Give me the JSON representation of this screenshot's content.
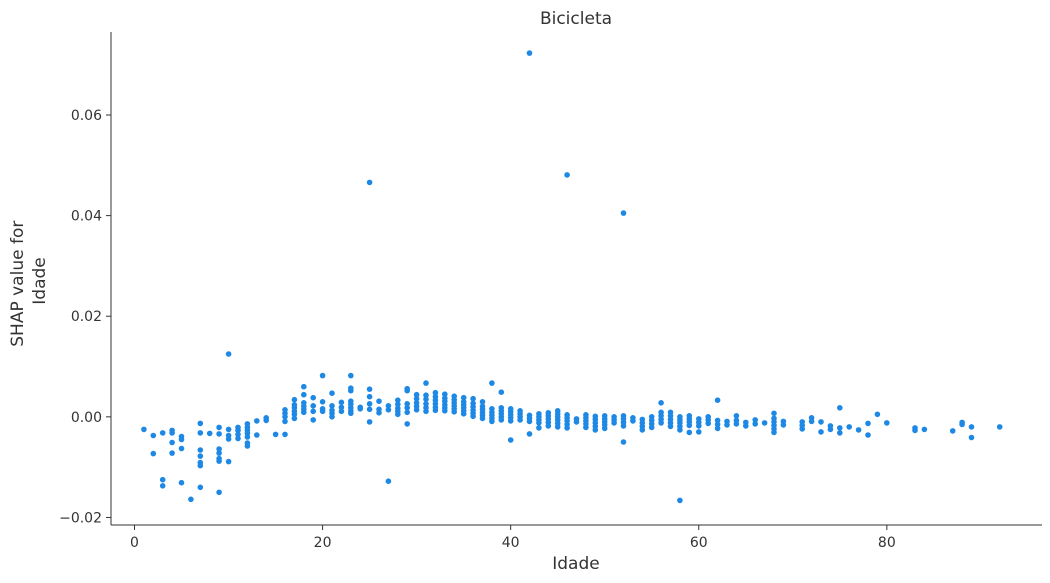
{
  "chart_data": {
    "type": "scatter",
    "title": "Bicicleta",
    "xlabel": "Idade",
    "ylabel_lines": [
      "SHAP value for",
      "Idade"
    ],
    "xlim": [
      -2.5,
      96.5
    ],
    "ylim": [
      -0.0215,
      0.0765
    ],
    "xticks": [
      0,
      20,
      40,
      60,
      80
    ],
    "yticks": [
      -0.02,
      0.0,
      0.02,
      0.04,
      0.06
    ],
    "ytick_labels": [
      "−0.02",
      "0.00",
      "0.02",
      "0.04",
      "0.06"
    ],
    "grid": false,
    "point_color": "#1e88e5",
    "points": [
      [
        1,
        -0.0025
      ],
      [
        2,
        -0.0037
      ],
      [
        2,
        -0.0073
      ],
      [
        3,
        -0.0032
      ],
      [
        3,
        -0.0125
      ],
      [
        3,
        -0.0137
      ],
      [
        4,
        -0.0027
      ],
      [
        4,
        -0.0032
      ],
      [
        4,
        -0.0051
      ],
      [
        4,
        -0.0072
      ],
      [
        5,
        -0.0039
      ],
      [
        5,
        -0.0045
      ],
      [
        5,
        -0.0063
      ],
      [
        5,
        -0.0131
      ],
      [
        6,
        -0.0164
      ],
      [
        7,
        -0.0013
      ],
      [
        7,
        -0.0032
      ],
      [
        7,
        -0.0066
      ],
      [
        7,
        -0.0078
      ],
      [
        7,
        -0.0091
      ],
      [
        7,
        -0.0097
      ],
      [
        7,
        -0.014
      ],
      [
        8,
        -0.0033
      ],
      [
        9,
        -0.0021
      ],
      [
        9,
        -0.0034
      ],
      [
        9,
        -0.0064
      ],
      [
        9,
        -0.0072
      ],
      [
        9,
        -0.0083
      ],
      [
        9,
        -0.0088
      ],
      [
        9,
        -0.015
      ],
      [
        10,
        -0.0025
      ],
      [
        10,
        -0.0037
      ],
      [
        10,
        -0.0044
      ],
      [
        10,
        -0.0089
      ],
      [
        10,
        0.0125
      ],
      [
        11,
        -0.0021
      ],
      [
        11,
        -0.0027
      ],
      [
        11,
        -0.0035
      ],
      [
        11,
        -0.0043
      ],
      [
        12,
        -0.0014
      ],
      [
        12,
        -0.0021
      ],
      [
        12,
        -0.0027
      ],
      [
        12,
        -0.0033
      ],
      [
        12,
        -0.004
      ],
      [
        12,
        -0.0052
      ],
      [
        12,
        -0.0058
      ],
      [
        13,
        -0.0008
      ],
      [
        13,
        -0.0036
      ],
      [
        14,
        -0.0002
      ],
      [
        14,
        -0.0007
      ],
      [
        15,
        -0.0035
      ],
      [
        16,
        -0.0035
      ],
      [
        16,
        -0.0009
      ],
      [
        16,
        0.0
      ],
      [
        16,
        0.0007
      ],
      [
        16,
        0.0014
      ],
      [
        17,
        -0.0003
      ],
      [
        17,
        0.0005
      ],
      [
        17,
        0.0011
      ],
      [
        17,
        0.0018
      ],
      [
        17,
        0.0024
      ],
      [
        17,
        0.0034
      ],
      [
        18,
        0.0009
      ],
      [
        18,
        0.0015
      ],
      [
        18,
        0.0021
      ],
      [
        18,
        0.0028
      ],
      [
        18,
        0.0044
      ],
      [
        18,
        0.006
      ],
      [
        19,
        -0.0006
      ],
      [
        19,
        0.0011
      ],
      [
        19,
        0.0022
      ],
      [
        19,
        0.0038
      ],
      [
        20,
        0.0011
      ],
      [
        20,
        0.0016
      ],
      [
        20,
        0.003
      ],
      [
        20,
        0.0082
      ],
      [
        21,
        0.0
      ],
      [
        21,
        0.0007
      ],
      [
        21,
        0.0013
      ],
      [
        21,
        0.0022
      ],
      [
        21,
        0.0047
      ],
      [
        22,
        0.0011
      ],
      [
        22,
        0.0019
      ],
      [
        22,
        0.0029
      ],
      [
        23,
        0.0007
      ],
      [
        23,
        0.0012
      ],
      [
        23,
        0.0018
      ],
      [
        23,
        0.0025
      ],
      [
        23,
        0.0031
      ],
      [
        23,
        0.0052
      ],
      [
        23,
        0.0057
      ],
      [
        23,
        0.0082
      ],
      [
        24,
        0.0016
      ],
      [
        24,
        0.0019
      ],
      [
        25,
        -0.001
      ],
      [
        25,
        0.0015
      ],
      [
        25,
        0.0026
      ],
      [
        25,
        0.004
      ],
      [
        25,
        0.0055
      ],
      [
        25,
        0.0466
      ],
      [
        26,
        0.0008
      ],
      [
        26,
        0.0015
      ],
      [
        26,
        0.0031
      ],
      [
        27,
        0.0014
      ],
      [
        27,
        0.0022
      ],
      [
        27,
        -0.0128
      ],
      [
        28,
        0.0005
      ],
      [
        28,
        0.0011
      ],
      [
        28,
        0.0017
      ],
      [
        28,
        0.0025
      ],
      [
        28,
        0.0033
      ],
      [
        29,
        -0.0014
      ],
      [
        29,
        0.0009
      ],
      [
        29,
        0.0018
      ],
      [
        29,
        0.0026
      ],
      [
        29,
        0.0052
      ],
      [
        29,
        0.0056
      ],
      [
        30,
        0.0014
      ],
      [
        30,
        0.0021
      ],
      [
        30,
        0.0028
      ],
      [
        30,
        0.0036
      ],
      [
        30,
        0.0044
      ],
      [
        31,
        0.0011
      ],
      [
        31,
        0.0018
      ],
      [
        31,
        0.0026
      ],
      [
        31,
        0.0035
      ],
      [
        31,
        0.0043
      ],
      [
        31,
        0.0067
      ],
      [
        32,
        0.0013
      ],
      [
        32,
        0.0019
      ],
      [
        32,
        0.0026
      ],
      [
        32,
        0.0033
      ],
      [
        32,
        0.004
      ],
      [
        32,
        0.0048
      ],
      [
        33,
        0.0012
      ],
      [
        33,
        0.0018
      ],
      [
        33,
        0.0024
      ],
      [
        33,
        0.0031
      ],
      [
        33,
        0.0037
      ],
      [
        33,
        0.0045
      ],
      [
        34,
        0.001
      ],
      [
        34,
        0.0016
      ],
      [
        34,
        0.0022
      ],
      [
        34,
        0.0028
      ],
      [
        34,
        0.0034
      ],
      [
        34,
        0.0041
      ],
      [
        35,
        0.0006
      ],
      [
        35,
        0.0012
      ],
      [
        35,
        0.0018
      ],
      [
        35,
        0.0024
      ],
      [
        35,
        0.003
      ],
      [
        35,
        0.0038
      ],
      [
        36,
        0.0001
      ],
      [
        36,
        0.0007
      ],
      [
        36,
        0.0013
      ],
      [
        36,
        0.002
      ],
      [
        36,
        0.0027
      ],
      [
        36,
        0.0036
      ],
      [
        37,
        -0.0003
      ],
      [
        37,
        0.0003
      ],
      [
        37,
        0.0009
      ],
      [
        37,
        0.0015
      ],
      [
        37,
        0.0021
      ],
      [
        37,
        0.003
      ],
      [
        38,
        -0.0009
      ],
      [
        38,
        -0.0003
      ],
      [
        38,
        0.0003
      ],
      [
        38,
        0.0009
      ],
      [
        38,
        0.0016
      ],
      [
        38,
        0.0067
      ],
      [
        39,
        -0.0006
      ],
      [
        39,
        0.0
      ],
      [
        39,
        0.0006
      ],
      [
        39,
        0.0012
      ],
      [
        39,
        0.0018
      ],
      [
        39,
        0.0049
      ],
      [
        40,
        -0.0046
      ],
      [
        40,
        -0.0008
      ],
      [
        40,
        -0.0002
      ],
      [
        40,
        0.0004
      ],
      [
        40,
        0.001
      ],
      [
        40,
        0.0016
      ],
      [
        41,
        -0.0006
      ],
      [
        41,
        0.0
      ],
      [
        41,
        0.0006
      ],
      [
        41,
        0.0012
      ],
      [
        42,
        -0.0034
      ],
      [
        42,
        -0.0009
      ],
      [
        42,
        -0.0003
      ],
      [
        42,
        0.0003
      ],
      [
        42,
        0.0723
      ],
      [
        43,
        -0.0022
      ],
      [
        43,
        -0.0012
      ],
      [
        43,
        -0.0006
      ],
      [
        43,
        0.0
      ],
      [
        43,
        0.0006
      ],
      [
        44,
        -0.0018
      ],
      [
        44,
        -0.0011
      ],
      [
        44,
        -0.0004
      ],
      [
        44,
        0.0002
      ],
      [
        44,
        0.0008
      ],
      [
        45,
        -0.002
      ],
      [
        45,
        -0.0013
      ],
      [
        45,
        -0.0006
      ],
      [
        45,
        0.0
      ],
      [
        45,
        0.0006
      ],
      [
        45,
        0.0012
      ],
      [
        46,
        -0.0022
      ],
      [
        46,
        -0.0015
      ],
      [
        46,
        -0.0008
      ],
      [
        46,
        -0.0002
      ],
      [
        46,
        0.0004
      ],
      [
        46,
        0.0481
      ],
      [
        47,
        -0.001
      ],
      [
        47,
        -0.0004
      ],
      [
        48,
        -0.0021
      ],
      [
        48,
        -0.0014
      ],
      [
        48,
        -0.0008
      ],
      [
        48,
        -0.0002
      ],
      [
        48,
        0.0004
      ],
      [
        49,
        -0.0026
      ],
      [
        49,
        -0.0019
      ],
      [
        49,
        -0.0012
      ],
      [
        49,
        -0.0005
      ],
      [
        49,
        0.0001
      ],
      [
        50,
        -0.0023
      ],
      [
        50,
        -0.0016
      ],
      [
        50,
        -0.001
      ],
      [
        50,
        -0.0004
      ],
      [
        50,
        0.0002
      ],
      [
        51,
        -0.0012
      ],
      [
        51,
        -0.0006
      ],
      [
        51,
        0.0
      ],
      [
        52,
        -0.005
      ],
      [
        52,
        -0.0018
      ],
      [
        52,
        -0.0011
      ],
      [
        52,
        -0.0004
      ],
      [
        52,
        0.0002
      ],
      [
        52,
        0.0405
      ],
      [
        53,
        -0.0008
      ],
      [
        53,
        -0.0002
      ],
      [
        54,
        -0.0026
      ],
      [
        54,
        -0.0019
      ],
      [
        54,
        -0.0012
      ],
      [
        54,
        -0.0005
      ],
      [
        55,
        -0.0021
      ],
      [
        55,
        -0.0014
      ],
      [
        55,
        -0.0007
      ],
      [
        55,
        0.0
      ],
      [
        56,
        -0.0012
      ],
      [
        56,
        -0.0005
      ],
      [
        56,
        0.0002
      ],
      [
        56,
        0.0009
      ],
      [
        56,
        0.0028
      ],
      [
        57,
        -0.0019
      ],
      [
        57,
        -0.0012
      ],
      [
        57,
        -0.0005
      ],
      [
        57,
        0.0002
      ],
      [
        57,
        0.0009
      ],
      [
        58,
        -0.0026
      ],
      [
        58,
        -0.0019
      ],
      [
        58,
        -0.0012
      ],
      [
        58,
        -0.0006
      ],
      [
        58,
        0.0
      ],
      [
        58,
        -0.0166
      ],
      [
        59,
        -0.0031
      ],
      [
        59,
        -0.0017
      ],
      [
        59,
        -0.001
      ],
      [
        59,
        -0.0004
      ],
      [
        59,
        0.0002
      ],
      [
        60,
        -0.003
      ],
      [
        60,
        -0.0018
      ],
      [
        60,
        -0.0011
      ],
      [
        60,
        -0.0004
      ],
      [
        61,
        -0.0013
      ],
      [
        61,
        -0.0006
      ],
      [
        61,
        0.0
      ],
      [
        62,
        -0.0023
      ],
      [
        62,
        -0.0015
      ],
      [
        62,
        -0.0007
      ],
      [
        62,
        0.0033
      ],
      [
        63,
        -0.0016
      ],
      [
        63,
        -0.0009
      ],
      [
        64,
        -0.0014
      ],
      [
        64,
        -0.0007
      ],
      [
        64,
        0.0002
      ],
      [
        65,
        -0.0018
      ],
      [
        65,
        -0.0011
      ],
      [
        66,
        -0.0014
      ],
      [
        66,
        -0.0006
      ],
      [
        67,
        -0.0012
      ],
      [
        68,
        -0.0031
      ],
      [
        68,
        -0.0024
      ],
      [
        68,
        -0.0017
      ],
      [
        68,
        -0.001
      ],
      [
        68,
        -0.0003
      ],
      [
        68,
        0.0007
      ],
      [
        69,
        -0.0016
      ],
      [
        69,
        -0.0009
      ],
      [
        71,
        -0.0024
      ],
      [
        71,
        -0.0017
      ],
      [
        71,
        -0.001
      ],
      [
        72,
        -0.0009
      ],
      [
        72,
        -0.0002
      ],
      [
        73,
        -0.003
      ],
      [
        73,
        -0.001
      ],
      [
        74,
        -0.0025
      ],
      [
        74,
        -0.0018
      ],
      [
        75,
        -0.0032
      ],
      [
        75,
        -0.0022
      ],
      [
        75,
        0.0018
      ],
      [
        76,
        -0.002
      ],
      [
        77,
        -0.0026
      ],
      [
        78,
        -0.0036
      ],
      [
        78,
        -0.0013
      ],
      [
        79,
        0.0005
      ],
      [
        80,
        -0.0012
      ],
      [
        83,
        -0.0022
      ],
      [
        83,
        -0.0027
      ],
      [
        84,
        -0.0025
      ],
      [
        87,
        -0.0028
      ],
      [
        88,
        -0.0011
      ],
      [
        88,
        -0.0015
      ],
      [
        89,
        -0.0041
      ],
      [
        89,
        -0.002
      ],
      [
        92,
        -0.002
      ]
    ]
  }
}
